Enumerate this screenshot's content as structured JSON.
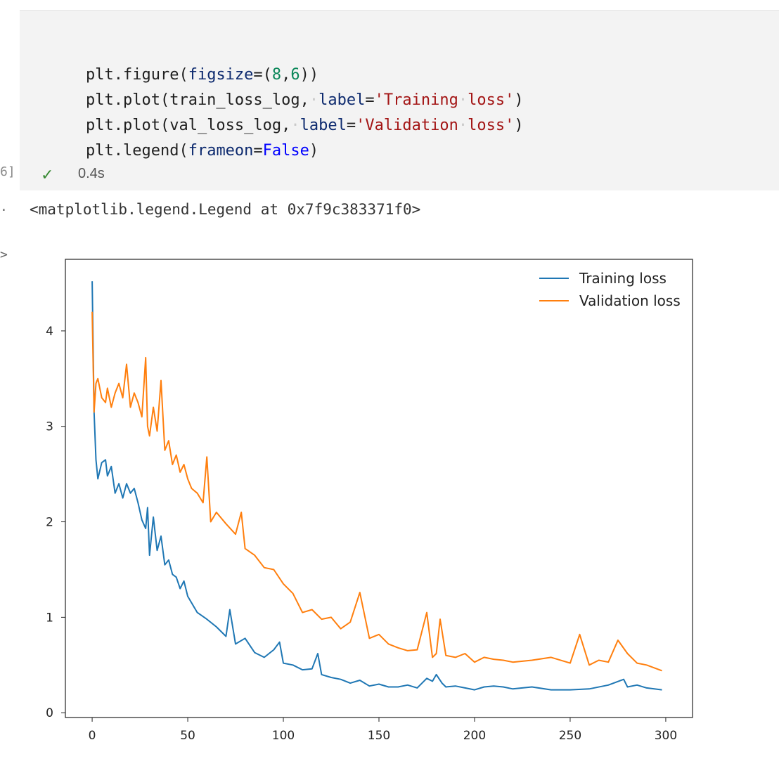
{
  "cell": {
    "execution_count": "6]",
    "status": "✓",
    "duration": "0.4s",
    "output_prompt": ".",
    "output_prompt2": ">",
    "output_text": "<matplotlib.legend.Legend at 0x7f9c383371f0>",
    "code_lines": [
      [
        {
          "t": "plt.figure(",
          "c": ""
        },
        {
          "t": "figsize",
          "c": "k"
        },
        {
          "t": "=(",
          "c": ""
        },
        {
          "t": "8",
          "c": "n"
        },
        {
          "t": ",",
          "c": ""
        },
        {
          "t": "6",
          "c": "n"
        },
        {
          "t": "))",
          "c": ""
        }
      ],
      [
        {
          "t": "plt.plot(train_loss_log,",
          "c": ""
        },
        {
          "t": "·",
          "c": "ws"
        },
        {
          "t": "label",
          "c": "k"
        },
        {
          "t": "=",
          "c": ""
        },
        {
          "t": "'Training",
          "c": "s"
        },
        {
          "t": "·",
          "c": "ws"
        },
        {
          "t": "loss'",
          "c": "s"
        },
        {
          "t": ")",
          "c": ""
        }
      ],
      [
        {
          "t": "plt.plot(val_loss_log,",
          "c": ""
        },
        {
          "t": "·",
          "c": "ws"
        },
        {
          "t": "label",
          "c": "k"
        },
        {
          "t": "=",
          "c": ""
        },
        {
          "t": "'Validation",
          "c": "s"
        },
        {
          "t": "·",
          "c": "ws"
        },
        {
          "t": "loss'",
          "c": "s"
        },
        {
          "t": ")",
          "c": ""
        }
      ],
      [
        {
          "t": "plt.legend(",
          "c": ""
        },
        {
          "t": "frameon",
          "c": "k"
        },
        {
          "t": "=",
          "c": ""
        },
        {
          "t": "False",
          "c": "b"
        },
        {
          "t": ")",
          "c": ""
        }
      ]
    ]
  },
  "chart_data": {
    "type": "line",
    "title": "",
    "xlabel": "",
    "ylabel": "",
    "xlim": [
      -14,
      314
    ],
    "ylim": [
      -0.05,
      4.75
    ],
    "xticks": [
      0,
      50,
      100,
      150,
      200,
      250,
      300
    ],
    "yticks": [
      0,
      1,
      2,
      3,
      4
    ],
    "grid": false,
    "legend_position": "top-right",
    "series": [
      {
        "name": "Training loss",
        "color": "#1f77b4",
        "x": [
          0,
          1,
          2,
          3,
          5,
          7,
          8,
          10,
          12,
          14,
          16,
          18,
          20,
          22,
          24,
          26,
          28,
          29,
          30,
          32,
          34,
          36,
          38,
          40,
          42,
          44,
          46,
          48,
          50,
          55,
          60,
          65,
          70,
          72,
          75,
          80,
          85,
          90,
          95,
          98,
          100,
          105,
          110,
          115,
          118,
          120,
          125,
          130,
          135,
          140,
          145,
          150,
          155,
          160,
          165,
          170,
          175,
          178,
          180,
          183,
          185,
          190,
          195,
          200,
          205,
          210,
          215,
          220,
          230,
          240,
          250,
          260,
          270,
          278,
          280,
          285,
          290,
          298
        ],
        "y": [
          4.52,
          3.15,
          2.65,
          2.45,
          2.62,
          2.65,
          2.48,
          2.58,
          2.3,
          2.4,
          2.25,
          2.4,
          2.3,
          2.35,
          2.2,
          2.02,
          1.93,
          2.15,
          1.65,
          2.05,
          1.7,
          1.85,
          1.55,
          1.6,
          1.45,
          1.42,
          1.3,
          1.38,
          1.22,
          1.05,
          0.98,
          0.9,
          0.8,
          1.08,
          0.72,
          0.78,
          0.63,
          0.58,
          0.66,
          0.74,
          0.52,
          0.5,
          0.45,
          0.46,
          0.62,
          0.4,
          0.37,
          0.35,
          0.31,
          0.34,
          0.28,
          0.3,
          0.27,
          0.27,
          0.29,
          0.26,
          0.36,
          0.33,
          0.4,
          0.31,
          0.27,
          0.28,
          0.26,
          0.24,
          0.27,
          0.28,
          0.27,
          0.25,
          0.27,
          0.24,
          0.24,
          0.25,
          0.29,
          0.35,
          0.27,
          0.29,
          0.26,
          0.24
        ]
      },
      {
        "name": "Validation loss",
        "color": "#ff7f0e",
        "x": [
          0,
          1,
          2,
          3,
          5,
          7,
          8,
          10,
          12,
          14,
          16,
          18,
          20,
          22,
          24,
          26,
          28,
          29,
          30,
          32,
          34,
          36,
          38,
          40,
          42,
          44,
          46,
          48,
          50,
          52,
          55,
          58,
          60,
          62,
          65,
          70,
          75,
          78,
          80,
          85,
          90,
          95,
          100,
          105,
          110,
          115,
          120,
          125,
          130,
          135,
          140,
          145,
          150,
          155,
          160,
          165,
          170,
          175,
          178,
          180,
          182,
          185,
          190,
          195,
          200,
          205,
          210,
          215,
          220,
          230,
          240,
          250,
          255,
          260,
          265,
          270,
          275,
          280,
          285,
          290,
          298
        ],
        "y": [
          4.2,
          3.15,
          3.45,
          3.5,
          3.3,
          3.25,
          3.4,
          3.2,
          3.35,
          3.45,
          3.3,
          3.65,
          3.2,
          3.35,
          3.25,
          3.1,
          3.72,
          3.0,
          2.9,
          3.2,
          2.95,
          3.48,
          2.75,
          2.85,
          2.6,
          2.7,
          2.52,
          2.6,
          2.45,
          2.35,
          2.3,
          2.2,
          2.68,
          2.0,
          2.1,
          1.98,
          1.87,
          2.1,
          1.72,
          1.65,
          1.52,
          1.5,
          1.35,
          1.25,
          1.05,
          1.08,
          0.98,
          1.0,
          0.88,
          0.95,
          1.26,
          0.78,
          0.82,
          0.72,
          0.68,
          0.65,
          0.66,
          1.05,
          0.58,
          0.62,
          0.98,
          0.6,
          0.58,
          0.62,
          0.53,
          0.58,
          0.56,
          0.55,
          0.53,
          0.55,
          0.58,
          0.52,
          0.82,
          0.5,
          0.55,
          0.53,
          0.76,
          0.62,
          0.52,
          0.5,
          0.44
        ]
      }
    ]
  }
}
